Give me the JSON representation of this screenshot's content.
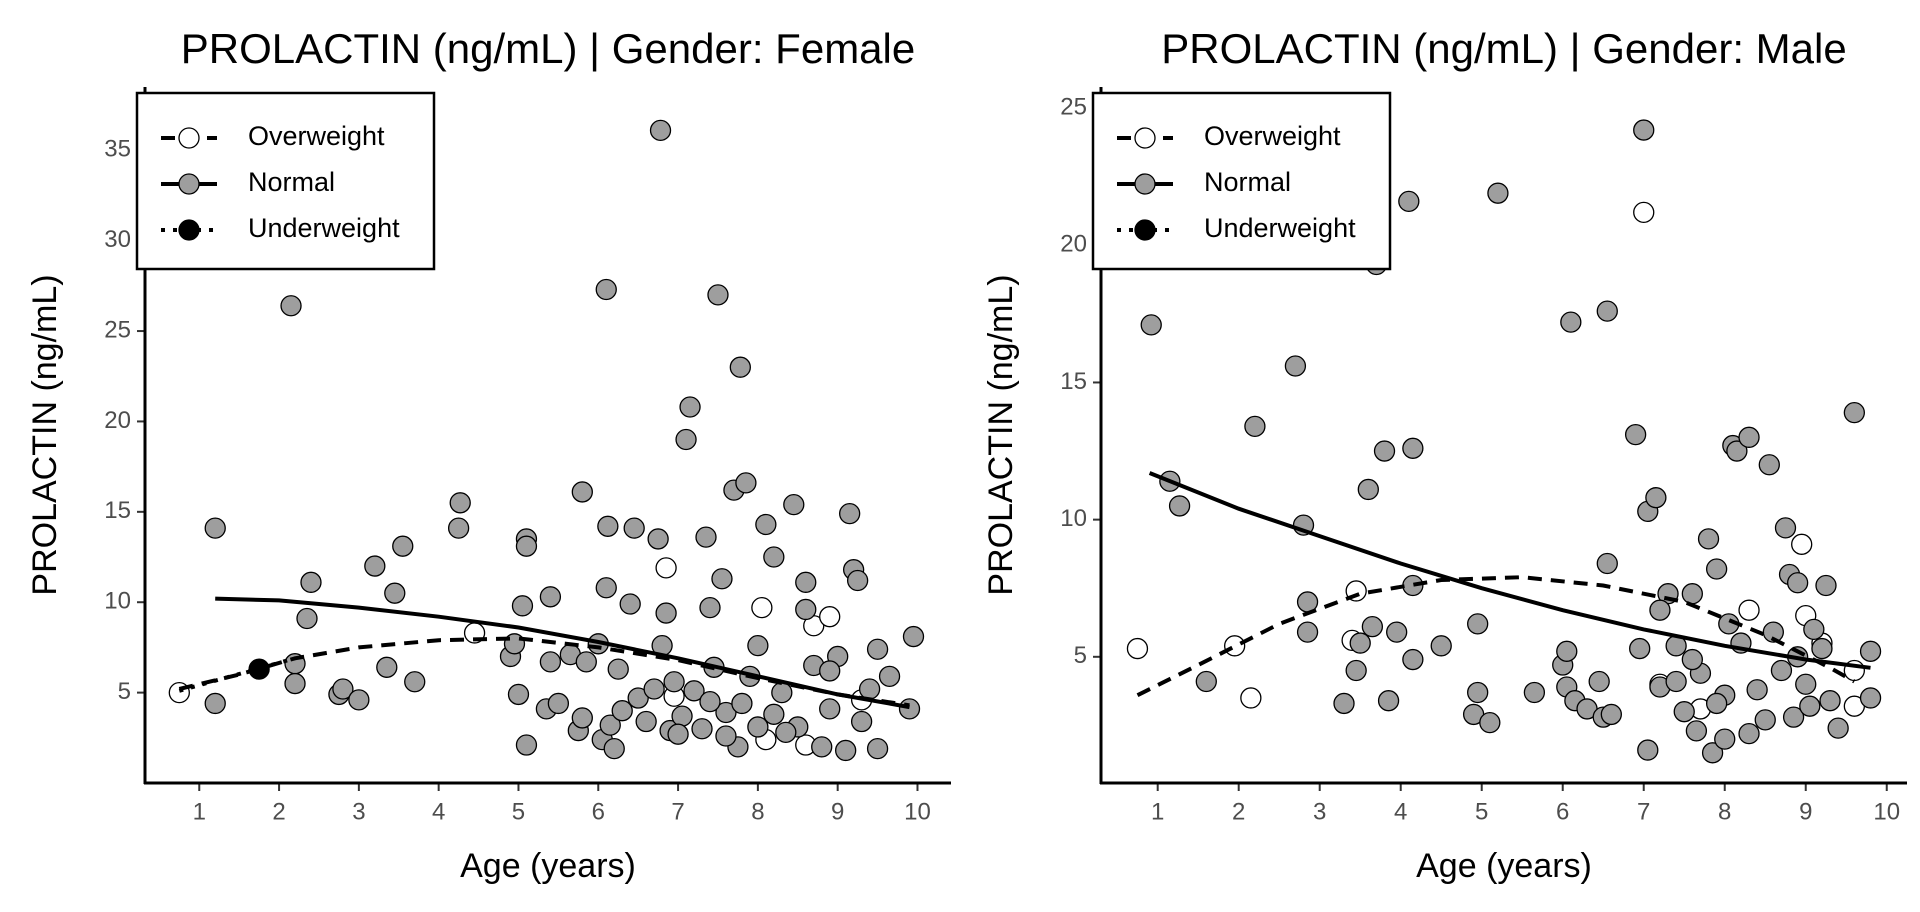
{
  "chart_data": [
    {
      "type": "scatter",
      "title": "PROLACTIN (ng/mL) | Gender: Female",
      "x_label": "Age (years)",
      "y_label": "PROLACTIN (ng/mL)",
      "xlim": [
        0.32,
        10.42
      ],
      "ylim": [
        0,
        38.5
      ],
      "xticks": [
        1,
        2,
        3,
        4,
        5,
        6,
        7,
        8,
        9,
        10
      ],
      "yticks": [
        5,
        10,
        15,
        20,
        25,
        30,
        35
      ],
      "legend": "top-left",
      "series": [
        {
          "name": "Overweight",
          "color": "#ffffff",
          "line_style": "dashed",
          "x": [
            0.75,
            4.45,
            6.85,
            6.95,
            8.05,
            8.1,
            8.7,
            8.9,
            9.3,
            8.6
          ],
          "values": [
            5.0,
            8.3,
            11.9,
            4.8,
            9.7,
            2.4,
            8.7,
            9.2,
            4.6,
            2.1
          ],
          "fit_x": [
            0.75,
            1.5,
            2.2,
            3,
            4,
            5,
            6,
            7,
            8,
            9,
            9.9
          ],
          "fit_values": [
            5.2,
            6.0,
            6.9,
            7.5,
            7.9,
            8.0,
            7.5,
            6.8,
            5.8,
            4.9,
            4.3
          ]
        },
        {
          "name": "Normal",
          "color": "#9e9e9e",
          "line_style": "solid",
          "x": [
            1.2,
            1.2,
            2.15,
            2.2,
            2.2,
            2.35,
            2.4,
            2.75,
            2.8,
            3,
            3.2,
            3.35,
            3.45,
            3.55,
            3.7,
            4.25,
            4.27,
            4.9,
            4.95,
            5.0,
            5.05,
            5.1,
            5.1,
            5.1,
            5.35,
            5.4,
            5.4,
            5.5,
            5.65,
            5.75,
            5.8,
            5.8,
            5.85,
            6.0,
            6.05,
            6.1,
            6.1,
            6.12,
            6.15,
            6.2,
            6.25,
            6.3,
            6.4,
            6.45,
            6.5,
            6.6,
            6.75,
            6.78,
            6.8,
            6.85,
            6.9,
            6.95,
            7.05,
            7.1,
            7.15,
            7.2,
            7.3,
            7.35,
            7.4,
            7.45,
            7.5,
            7.55,
            7.6,
            7.7,
            7.75,
            7.78,
            7.85,
            7.9,
            8.0,
            8.1,
            8.2,
            8.3,
            8.45,
            8.5,
            8.6,
            8.7,
            8.8,
            8.9,
            9.15,
            9.2,
            9.25,
            9.3,
            9.5,
            9.5,
            9.65,
            9.9,
            9.95,
            8.2,
            7.8,
            8.6,
            7.0,
            8.35,
            9.0,
            8.0,
            7.4,
            8.9,
            9.1,
            9.4,
            6.7,
            7.6
          ],
          "values": [
            4.4,
            14.1,
            26.4,
            6.6,
            5.5,
            9.1,
            11.1,
            4.9,
            5.2,
            4.6,
            12,
            6.4,
            10.5,
            13.1,
            5.6,
            14.1,
            15.5,
            7.0,
            7.7,
            4.9,
            9.8,
            13.5,
            13.1,
            2.1,
            4.1,
            10.3,
            6.7,
            4.4,
            7.1,
            2.9,
            16.1,
            3.6,
            6.7,
            7.7,
            2.4,
            27.3,
            10.8,
            14.2,
            3.2,
            1.9,
            6.3,
            4.0,
            9.9,
            14.1,
            4.7,
            3.4,
            13.5,
            36.1,
            7.6,
            9.4,
            2.9,
            5.6,
            3.7,
            19,
            20.8,
            5.1,
            3.0,
            13.6,
            9.7,
            6.4,
            27,
            11.3,
            3.9,
            16.2,
            2.0,
            23,
            16.6,
            5.9,
            7.6,
            14.3,
            12.5,
            5.0,
            15.4,
            3.1,
            11.1,
            6.5,
            2.0,
            4.1,
            14.9,
            11.8,
            11.2,
            3.4,
            7.4,
            1.9,
            5.9,
            4.1,
            8.1,
            3.8,
            4.4,
            9.6,
            2.7,
            2.8,
            7.0,
            3.1,
            4.5,
            6.2,
            1.8,
            5.2,
            5.2,
            2.6
          ],
          "fit_x": [
            1.2,
            2,
            3,
            4,
            5,
            6,
            7,
            8,
            9,
            9.9
          ],
          "fit_values": [
            10.2,
            10.1,
            9.7,
            9.2,
            8.6,
            7.8,
            6.9,
            5.9,
            4.9,
            4.2
          ]
        },
        {
          "name": "Underweight",
          "color": "#000000",
          "line_style": "dotted",
          "x": [
            1.75
          ],
          "values": [
            6.3
          ],
          "fit_x": [
            0.75,
            2.2
          ],
          "fit_values": [
            5.1,
            6.9
          ]
        }
      ]
    },
    {
      "type": "scatter",
      "title": "PROLACTIN (ng/mL) | Gender: Male",
      "x_label": "Age (years)",
      "y_label": "PROLACTIN (ng/mL)",
      "xlim": [
        0.3,
        10.25
      ],
      "ylim": [
        0.4,
        25.77
      ],
      "xticks": [
        1,
        2,
        3,
        4,
        5,
        6,
        7,
        8,
        9,
        10
      ],
      "yticks": [
        5,
        10,
        15,
        20,
        25
      ],
      "legend": "top-left",
      "series": [
        {
          "name": "Overweight",
          "color": "#ffffff",
          "line_style": "dashed",
          "x": [
            0.75,
            1.95,
            2.15,
            3.4,
            3.45,
            7.0,
            7.2,
            7.7,
            8.3,
            8.95,
            9.0,
            9.2,
            9.6,
            9.6
          ],
          "values": [
            5.3,
            5.4,
            3.5,
            5.6,
            7.4,
            21.2,
            4.0,
            3.1,
            6.7,
            9.1,
            6.5,
            5.5,
            4.5,
            3.2
          ],
          "fit_x": [
            0.75,
            1.5,
            2.5,
            3.5,
            4.5,
            5.5,
            6.5,
            7.5,
            8.5,
            9.3,
            9.6
          ],
          "fit_values": [
            3.6,
            4.7,
            6.2,
            7.3,
            7.8,
            7.9,
            7.6,
            7.0,
            5.8,
            4.6,
            4.1
          ]
        },
        {
          "name": "Normal",
          "color": "#9e9e9e",
          "line_style": "solid",
          "x": [
            0.92,
            1.15,
            1.27,
            1.6,
            2.2,
            2.7,
            2.8,
            2.85,
            2.85,
            3.3,
            3.45,
            3.5,
            3.6,
            3.65,
            3.7,
            3.8,
            3.85,
            3.95,
            4.1,
            4.15,
            4.15,
            4.15,
            4.5,
            4.9,
            4.95,
            4.95,
            5.1,
            5.2,
            5.65,
            6.0,
            6.05,
            6.05,
            6.1,
            6.15,
            6.3,
            6.45,
            6.5,
            6.55,
            6.55,
            6.6,
            6.9,
            6.95,
            7.0,
            7.05,
            7.05,
            7.15,
            7.2,
            7.3,
            7.4,
            7.5,
            7.6,
            7.65,
            7.7,
            7.8,
            7.85,
            7.9,
            8.0,
            8.05,
            8.1,
            8.15,
            8.3,
            8.4,
            8.5,
            8.55,
            8.6,
            8.75,
            8.8,
            8.85,
            8.9,
            9.0,
            9.05,
            9.2,
            9.25,
            9.3,
            9.4,
            9.6,
            9.8,
            9.8,
            7.4,
            8.2,
            7.9,
            8.7,
            9.1,
            7.6,
            8.3,
            8.9,
            7.2,
            8.0
          ],
          "values": [
            17.1,
            11.4,
            10.5,
            4.1,
            13.4,
            15.6,
            9.8,
            5.9,
            7.0,
            3.3,
            4.5,
            5.5,
            11.1,
            6.1,
            19.3,
            12.5,
            3.4,
            5.9,
            21.6,
            7.6,
            12.6,
            4.9,
            5.4,
            2.9,
            3.7,
            6.2,
            2.6,
            21.9,
            3.7,
            4.7,
            3.9,
            5.2,
            17.2,
            3.4,
            3.1,
            4.1,
            2.8,
            17.6,
            8.4,
            2.9,
            13.1,
            5.3,
            24.2,
            1.6,
            10.3,
            10.8,
            3.9,
            7.3,
            5.4,
            3.0,
            7.3,
            2.3,
            4.4,
            9.3,
            1.5,
            8.2,
            3.6,
            6.2,
            12.7,
            12.5,
            13.0,
            3.8,
            2.7,
            12.0,
            5.9,
            9.7,
            8.0,
            2.8,
            7.7,
            4.0,
            3.2,
            5.3,
            7.6,
            3.4,
            2.4,
            13.9,
            5.2,
            3.5,
            4.1,
            5.5,
            3.3,
            4.5,
            6.0,
            4.9,
            2.2,
            5.0,
            6.7,
            2.0
          ],
          "fit_x": [
            0.9,
            2,
            3,
            4,
            5,
            6,
            7,
            8,
            9,
            9.8
          ],
          "fit_values": [
            11.7,
            10.4,
            9.4,
            8.4,
            7.5,
            6.7,
            6.0,
            5.4,
            4.9,
            4.6
          ]
        },
        {
          "name": "Underweight",
          "color": "#000000",
          "line_style": "dotted",
          "x": [],
          "values": [],
          "fit_x": [],
          "fit_values": []
        }
      ]
    }
  ]
}
